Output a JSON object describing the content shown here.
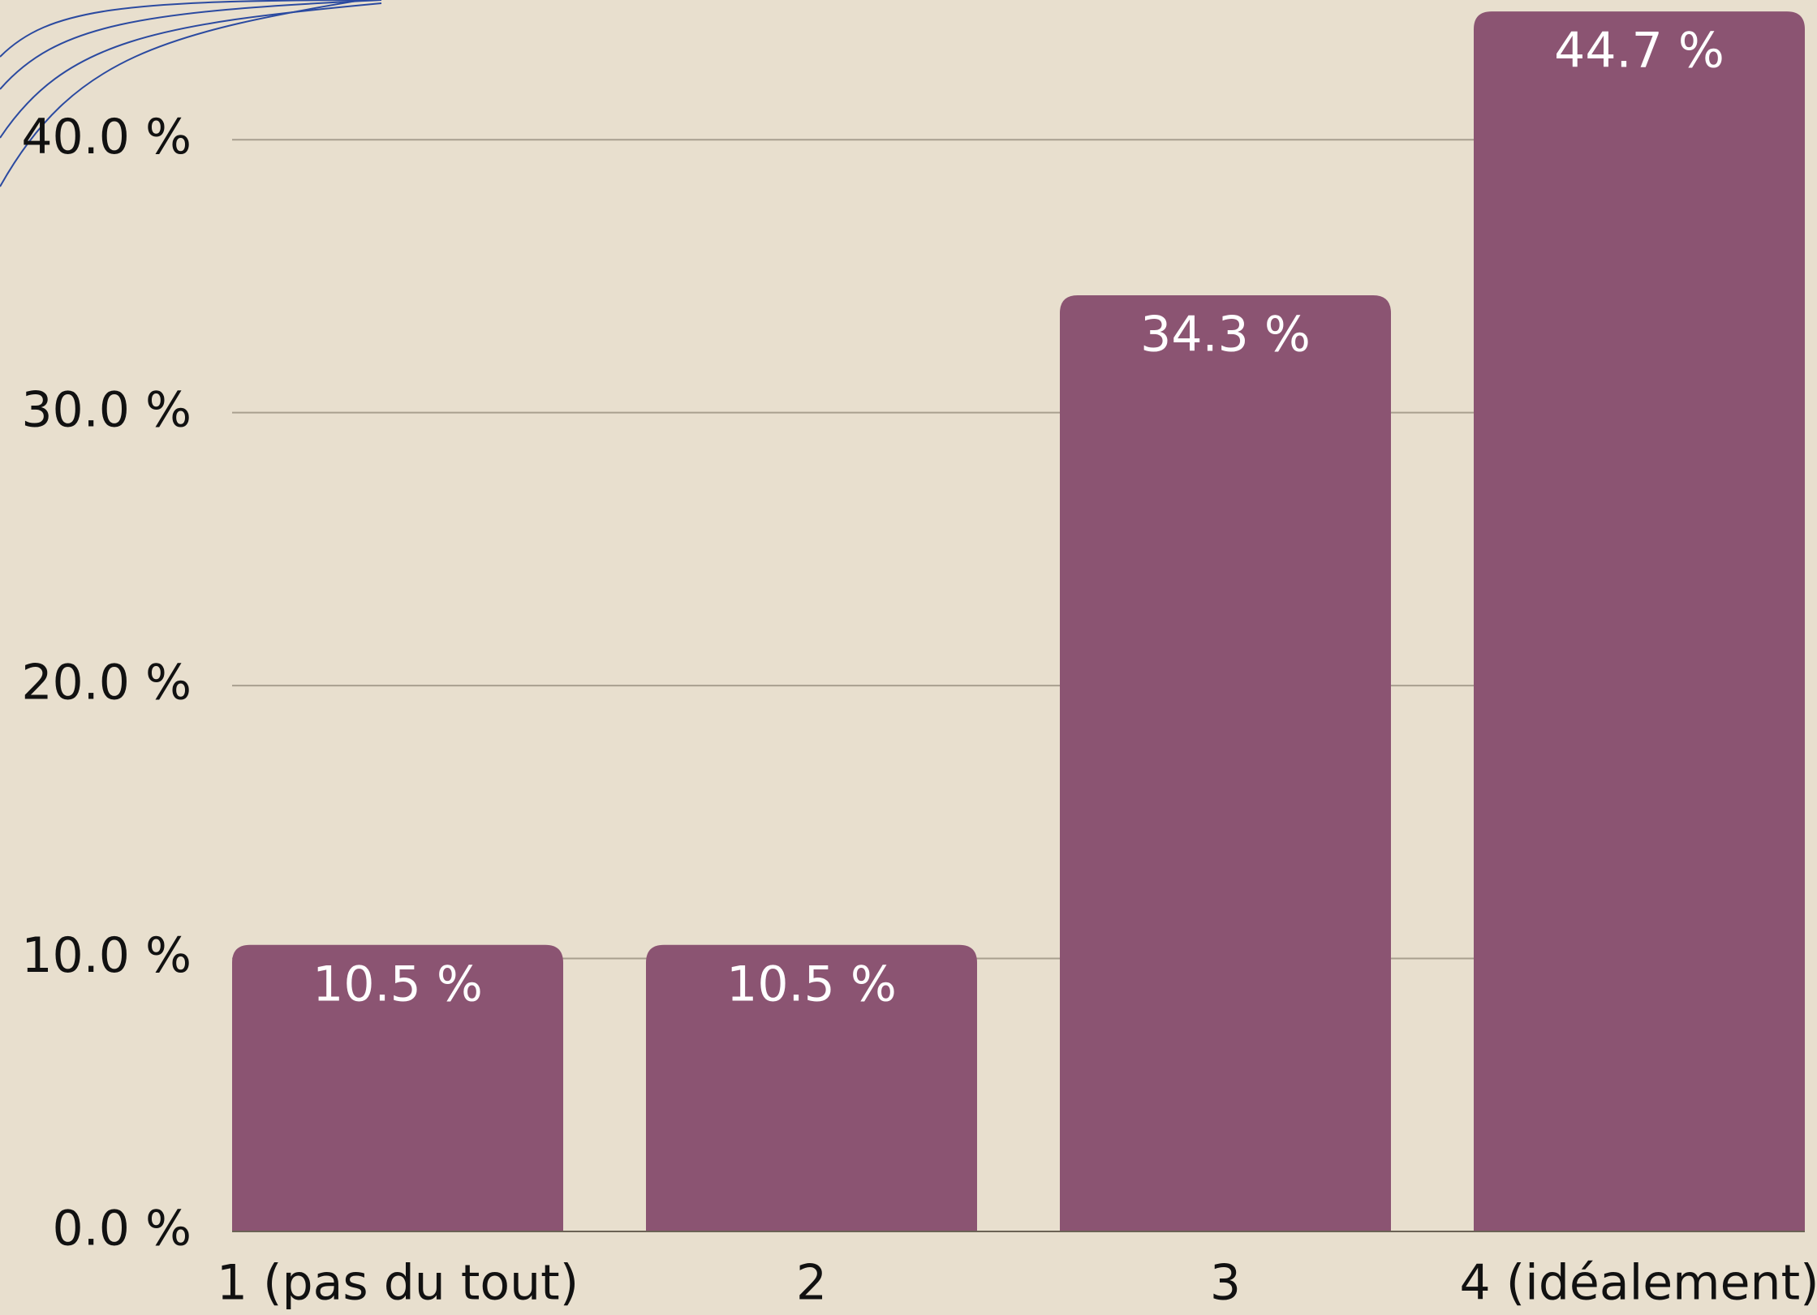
{
  "chart_data": {
    "type": "bar",
    "categories": [
      "1 (pas du tout)",
      "2",
      "3",
      "4 (idéalement)"
    ],
    "values": [
      10.5,
      10.5,
      34.3,
      44.7
    ],
    "value_labels": [
      "10.5 %",
      "10.5 %",
      "34.3 %",
      "44.7 %"
    ],
    "color": "#8b5472",
    "ylim": [
      0,
      45
    ],
    "yticks": [
      {
        "value": 0,
        "label": "0.0 %"
      },
      {
        "value": 10,
        "label": "10.0 %"
      },
      {
        "value": 20,
        "label": "20.0 %"
      },
      {
        "value": 30,
        "label": "30.0 %"
      },
      {
        "value": 40,
        "label": "40.0 %"
      }
    ],
    "grid": true
  }
}
